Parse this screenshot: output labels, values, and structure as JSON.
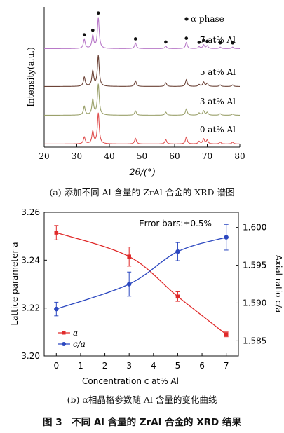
{
  "captions": {
    "panel_a": "(a) 添加不同 Al 含量的 ZrAl 合金的 XRD 谱图",
    "panel_b": "(b) α相晶格参数随 Al 含量的变化曲线",
    "figure": "图 3　不同 Al 含量的 ZrAl 合金的 XRD 结果"
  },
  "chart_data": [
    {
      "type": "line",
      "panel": "a",
      "xlabel": "2θ/(°)",
      "ylabel": "Intensity(a.u.)",
      "xlim": [
        20,
        80
      ],
      "xticks": [
        20,
        30,
        40,
        50,
        60,
        70,
        80
      ],
      "legend": {
        "marker": "●",
        "label": "α phase",
        "position": "top-right"
      },
      "alpha_peaks": [
        32.3,
        34.9,
        36.6,
        48.0,
        57.3,
        63.6,
        67.5,
        68.9,
        70.0,
        74.0,
        77.8
      ],
      "series": [
        {
          "name": "7 at% Al",
          "color": "#b878c8",
          "peaks": [
            [
              32.3,
              0.3
            ],
            [
              34.9,
              0.42
            ],
            [
              36.6,
              1.0
            ],
            [
              48.0,
              0.18
            ],
            [
              57.3,
              0.08
            ],
            [
              63.6,
              0.2
            ],
            [
              67.5,
              0.06
            ],
            [
              68.9,
              0.12
            ],
            [
              70.0,
              0.09
            ],
            [
              74.0,
              0.05
            ],
            [
              77.8,
              0.05
            ]
          ]
        },
        {
          "name": "5 at% Al",
          "color": "#6b4236",
          "peaks": [
            [
              32.3,
              0.3
            ],
            [
              34.9,
              0.5
            ],
            [
              36.6,
              1.0
            ],
            [
              48.0,
              0.18
            ],
            [
              57.3,
              0.12
            ],
            [
              63.6,
              0.22
            ],
            [
              67.5,
              0.06
            ],
            [
              68.9,
              0.14
            ],
            [
              70.0,
              0.1
            ],
            [
              74.0,
              0.05
            ],
            [
              77.8,
              0.05
            ]
          ]
        },
        {
          "name": "3 at% Al",
          "color": "#9aa06a",
          "peaks": [
            [
              32.3,
              0.28
            ],
            [
              34.9,
              0.5
            ],
            [
              36.6,
              1.0
            ],
            [
              48.0,
              0.14
            ],
            [
              57.3,
              0.1
            ],
            [
              63.6,
              0.2
            ],
            [
              67.5,
              0.07
            ],
            [
              68.9,
              0.14
            ],
            [
              70.0,
              0.09
            ],
            [
              74.0,
              0.05
            ],
            [
              77.8,
              0.04
            ]
          ]
        },
        {
          "name": "0 at% Al",
          "color": "#e05050",
          "peaks": [
            [
              32.3,
              0.22
            ],
            [
              34.9,
              0.4
            ],
            [
              36.6,
              1.0
            ],
            [
              48.0,
              0.18
            ],
            [
              57.3,
              0.14
            ],
            [
              63.6,
              0.22
            ],
            [
              67.5,
              0.08
            ],
            [
              68.9,
              0.16
            ],
            [
              70.0,
              0.12
            ],
            [
              74.0,
              0.06
            ],
            [
              77.8,
              0.06
            ]
          ]
        }
      ]
    },
    {
      "type": "line",
      "panel": "b",
      "xlabel": "Concentration c at% Al",
      "ylabel_left": "Lattice parameter a",
      "ylabel_right": "Axial ratio c/a",
      "xlim": [
        -0.5,
        7.5
      ],
      "ylim_left": [
        3.2,
        3.26
      ],
      "ylim_right": [
        1.583,
        1.602
      ],
      "xticks": [
        0,
        1,
        2,
        3,
        4,
        5,
        6,
        7
      ],
      "yticks_left": [
        "3.20",
        "3.22",
        "3.24",
        "3.26"
      ],
      "yticks_right": [
        "1.585",
        "1.590",
        "1.595",
        "1.600"
      ],
      "annotation": "Error bars:±0.5%",
      "legend_position": "bottom-left",
      "series": [
        {
          "name": "a",
          "axis": "left",
          "color": "#e02a2a",
          "marker": "square",
          "x": [
            0,
            3,
            5,
            7
          ],
          "y": [
            3.2515,
            3.2415,
            3.2248,
            3.209
          ],
          "error": [
            0.003,
            0.004,
            0.002,
            0.001
          ]
        },
        {
          "name": "c/a",
          "axis": "right",
          "color": "#2c48c0",
          "marker": "circle",
          "x": [
            0,
            3,
            5,
            7
          ],
          "y": [
            1.5892,
            1.5925,
            1.5968,
            1.5987
          ],
          "error": [
            0.0009,
            0.0016,
            0.0012,
            0.0017
          ]
        }
      ]
    }
  ]
}
